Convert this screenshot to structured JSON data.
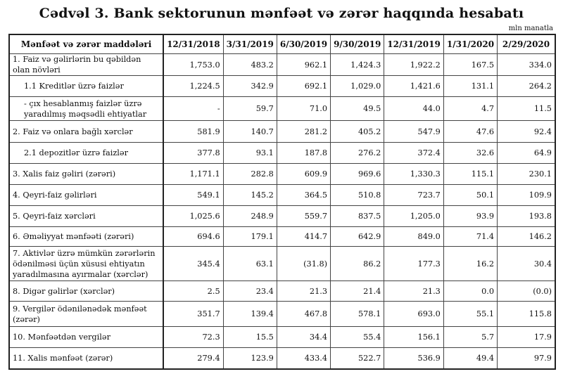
{
  "title": "Cədvəl 3. Bank sektorunun mənfəət və zərər haqqında hesabatı",
  "unit": "mln manatla",
  "columns": [
    "Mənfəət və zərər maddələri",
    "12/31/2018",
    "3/31/2019",
    "6/30/2019",
    "9/30/2019",
    "12/31/2019",
    "1/31/2020",
    "2/29/2020"
  ],
  "rows": [
    {
      "label": "1. Faiz və gəlirlərin bu qəbildən olan növləri",
      "values": [
        "1,753.0",
        "483.2",
        "962.1",
        "1,424.3",
        "1,922.2",
        "167.5",
        "334.0"
      ]
    },
    {
      "label": "1.1 Kreditlər üzrə faizlər",
      "values": [
        "1,224.5",
        "342.9",
        "692.1",
        "1,029.0",
        "1,421.6",
        "131.1",
        "264.2"
      ]
    },
    {
      "label": "-  çıx hesablanmış faizlər üzrə yaradılmış məqsədli ehtiyatlar",
      "values": [
        "-",
        "59.7",
        "71.0",
        "49.5",
        "44.0",
        "4.7",
        "11.5"
      ]
    },
    {
      "label": "2. Faiz və onlara bağlı xərclər",
      "values": [
        "581.9",
        "140.7",
        "281.2",
        "405.2",
        "547.9",
        "47.6",
        "92.4"
      ]
    },
    {
      "label": "2.1 depozitlər üzrə faizlər",
      "values": [
        "377.8",
        "93.1",
        "187.8",
        "276.2",
        "372.4",
        "32.6",
        "64.9"
      ]
    },
    {
      "label": "3. Xalis faiz gəliri (zərəri)",
      "values": [
        "1,171.1",
        "282.8",
        "609.9",
        "969.6",
        "1,330.3",
        "115.1",
        "230.1"
      ]
    },
    {
      "label": "4. Qeyri-faiz gəlirləri",
      "values": [
        "549.1",
        "145.2",
        "364.5",
        "510.8",
        "723.7",
        "50.1",
        "109.9"
      ]
    },
    {
      "label": "5. Qeyri-faiz xərcləri",
      "values": [
        "1,025.6",
        "248.9",
        "559.7",
        "837.5",
        "1,205.0",
        "93.9",
        "193.8"
      ]
    },
    {
      "label": "6. Əməliyyat mənfəəti (zərəri)",
      "values": [
        "694.6",
        "179.1",
        "414.7",
        "642.9",
        "849.0",
        "71.4",
        "146.2"
      ]
    },
    {
      "label": "7. Aktivlər üzrə mümkün zərərlərin ödənilməsi üçün xüsusi ehtiyatın yaradılmasına ayırmalar (xərclər)",
      "values": [
        "345.4",
        "63.1",
        "(31.8)",
        "86.2",
        "177.3",
        "16.2",
        "30.4"
      ]
    },
    {
      "label": "8. Digər gəlirlər (xərclər)",
      "values": [
        "2.5",
        "23.4",
        "21.3",
        "21.4",
        "21.3",
        "0.0",
        "(0.0)"
      ]
    },
    {
      "label": "9. Vergilər ödənilənədək mənfəət (zərər)",
      "values": [
        "351.7",
        "139.4",
        "467.8",
        "578.1",
        "693.0",
        "55.1",
        "115.8"
      ]
    },
    {
      "label": "10. Mənfəətdən vergilər",
      "values": [
        "72.3",
        "15.5",
        "34.4",
        "55.4",
        "156.1",
        "5.7",
        "17.9"
      ]
    },
    {
      "label": "11. Xalis mənfəət (zərər)",
      "values": [
        "279.4",
        "123.9",
        "433.4",
        "522.7",
        "536.9",
        "49.4",
        "97.9"
      ]
    }
  ]
}
